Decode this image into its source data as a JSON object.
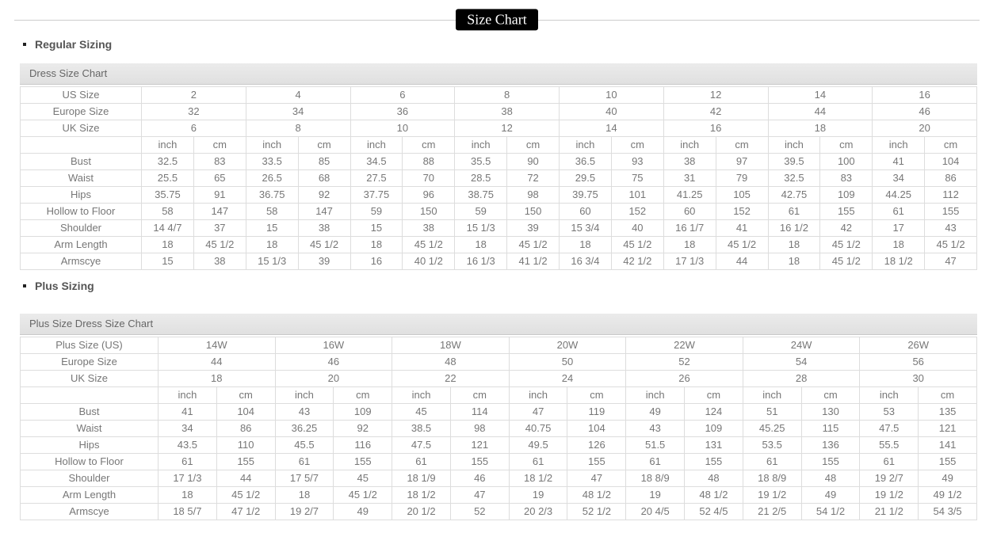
{
  "page": {
    "title": "Size Chart"
  },
  "colors": {
    "badge_bg": "#000000",
    "badge_text": "#ffffff",
    "table_title_bg": "#e4e4e4",
    "table_border": "#dddddd",
    "cell_text": "#777777",
    "heading_text": "#555555",
    "divider": "#cccccc"
  },
  "sections": [
    {
      "heading": "Regular Sizing",
      "table": {
        "title": "Dress Size Chart",
        "unit_labels": [
          "inch",
          "cm"
        ],
        "size_rows": [
          {
            "label": "US Size",
            "values": [
              "2",
              "4",
              "6",
              "8",
              "10",
              "12",
              "14",
              "16"
            ]
          },
          {
            "label": "Europe Size",
            "values": [
              "32",
              "34",
              "36",
              "38",
              "40",
              "42",
              "44",
              "46"
            ]
          },
          {
            "label": "UK Size",
            "values": [
              "6",
              "8",
              "10",
              "12",
              "14",
              "16",
              "18",
              "20"
            ]
          }
        ],
        "measure_rows": [
          {
            "label": "Bust",
            "cells": [
              [
                "32.5",
                "83"
              ],
              [
                "33.5",
                "85"
              ],
              [
                "34.5",
                "88"
              ],
              [
                "35.5",
                "90"
              ],
              [
                "36.5",
                "93"
              ],
              [
                "38",
                "97"
              ],
              [
                "39.5",
                "100"
              ],
              [
                "41",
                "104"
              ]
            ]
          },
          {
            "label": "Waist",
            "cells": [
              [
                "25.5",
                "65"
              ],
              [
                "26.5",
                "68"
              ],
              [
                "27.5",
                "70"
              ],
              [
                "28.5",
                "72"
              ],
              [
                "29.5",
                "75"
              ],
              [
                "31",
                "79"
              ],
              [
                "32.5",
                "83"
              ],
              [
                "34",
                "86"
              ]
            ]
          },
          {
            "label": "Hips",
            "cells": [
              [
                "35.75",
                "91"
              ],
              [
                "36.75",
                "92"
              ],
              [
                "37.75",
                "96"
              ],
              [
                "38.75",
                "98"
              ],
              [
                "39.75",
                "101"
              ],
              [
                "41.25",
                "105"
              ],
              [
                "42.75",
                "109"
              ],
              [
                "44.25",
                "112"
              ]
            ]
          },
          {
            "label": "Hollow to Floor",
            "cells": [
              [
                "58",
                "147"
              ],
              [
                "58",
                "147"
              ],
              [
                "59",
                "150"
              ],
              [
                "59",
                "150"
              ],
              [
                "60",
                "152"
              ],
              [
                "60",
                "152"
              ],
              [
                "61",
                "155"
              ],
              [
                "61",
                "155"
              ]
            ]
          },
          {
            "label": "Shoulder",
            "cells": [
              [
                "14 4/7",
                "37"
              ],
              [
                "15",
                "38"
              ],
              [
                "15",
                "38"
              ],
              [
                "15 1/3",
                "39"
              ],
              [
                "15 3/4",
                "40"
              ],
              [
                "16 1/7",
                "41"
              ],
              [
                "16 1/2",
                "42"
              ],
              [
                "17",
                "43"
              ]
            ]
          },
          {
            "label": "Arm Length",
            "cells": [
              [
                "18",
                "45 1/2"
              ],
              [
                "18",
                "45 1/2"
              ],
              [
                "18",
                "45 1/2"
              ],
              [
                "18",
                "45 1/2"
              ],
              [
                "18",
                "45 1/2"
              ],
              [
                "18",
                "45 1/2"
              ],
              [
                "18",
                "45 1/2"
              ],
              [
                "18",
                "45 1/2"
              ]
            ]
          },
          {
            "label": "Armscye",
            "cells": [
              [
                "15",
                "38"
              ],
              [
                "15 1/3",
                "39"
              ],
              [
                "16",
                "40 1/2"
              ],
              [
                "16 1/3",
                "41 1/2"
              ],
              [
                "16 3/4",
                "42 1/2"
              ],
              [
                "17 1/3",
                "44"
              ],
              [
                "18",
                "45 1/2"
              ],
              [
                "18 1/2",
                "47"
              ]
            ]
          }
        ]
      }
    },
    {
      "heading": "Plus Sizing",
      "table": {
        "title": "Plus Size Dress Size Chart",
        "unit_labels": [
          "inch",
          "cm"
        ],
        "size_rows": [
          {
            "label": "Plus Size (US)",
            "values": [
              "14W",
              "16W",
              "18W",
              "20W",
              "22W",
              "24W",
              "26W"
            ]
          },
          {
            "label": "Europe Size",
            "values": [
              "44",
              "46",
              "48",
              "50",
              "52",
              "54",
              "56"
            ]
          },
          {
            "label": "UK Size",
            "values": [
              "18",
              "20",
              "22",
              "24",
              "26",
              "28",
              "30"
            ]
          }
        ],
        "measure_rows": [
          {
            "label": "Bust",
            "cells": [
              [
                "41",
                "104"
              ],
              [
                "43",
                "109"
              ],
              [
                "45",
                "114"
              ],
              [
                "47",
                "119"
              ],
              [
                "49",
                "124"
              ],
              [
                "51",
                "130"
              ],
              [
                "53",
                "135"
              ]
            ]
          },
          {
            "label": "Waist",
            "cells": [
              [
                "34",
                "86"
              ],
              [
                "36.25",
                "92"
              ],
              [
                "38.5",
                "98"
              ],
              [
                "40.75",
                "104"
              ],
              [
                "43",
                "109"
              ],
              [
                "45.25",
                "115"
              ],
              [
                "47.5",
                "121"
              ]
            ]
          },
          {
            "label": "Hips",
            "cells": [
              [
                "43.5",
                "110"
              ],
              [
                "45.5",
                "116"
              ],
              [
                "47.5",
                "121"
              ],
              [
                "49.5",
                "126"
              ],
              [
                "51.5",
                "131"
              ],
              [
                "53.5",
                "136"
              ],
              [
                "55.5",
                "141"
              ]
            ]
          },
          {
            "label": "Hollow to Floor",
            "cells": [
              [
                "61",
                "155"
              ],
              [
                "61",
                "155"
              ],
              [
                "61",
                "155"
              ],
              [
                "61",
                "155"
              ],
              [
                "61",
                "155"
              ],
              [
                "61",
                "155"
              ],
              [
                "61",
                "155"
              ]
            ]
          },
          {
            "label": "Shoulder",
            "cells": [
              [
                "17 1/3",
                "44"
              ],
              [
                "17 5/7",
                "45"
              ],
              [
                "18 1/9",
                "46"
              ],
              [
                "18 1/2",
                "47"
              ],
              [
                "18 8/9",
                "48"
              ],
              [
                "18 8/9",
                "48"
              ],
              [
                "19 2/7",
                "49"
              ]
            ]
          },
          {
            "label": "Arm Length",
            "cells": [
              [
                "18",
                "45 1/2"
              ],
              [
                "18",
                "45 1/2"
              ],
              [
                "18 1/2",
                "47"
              ],
              [
                "19",
                "48 1/2"
              ],
              [
                "19",
                "48 1/2"
              ],
              [
                "19 1/2",
                "49"
              ],
              [
                "19 1/2",
                "49 1/2"
              ]
            ]
          },
          {
            "label": "Armscye",
            "cells": [
              [
                "18 5/7",
                "47 1/2"
              ],
              [
                "19 2/7",
                "49"
              ],
              [
                "20 1/2",
                "52"
              ],
              [
                "20 2/3",
                "52 1/2"
              ],
              [
                "20 4/5",
                "52 4/5"
              ],
              [
                "21 2/5",
                "54 1/2"
              ],
              [
                "21 1/2",
                "54 3/5"
              ]
            ]
          }
        ]
      }
    }
  ]
}
